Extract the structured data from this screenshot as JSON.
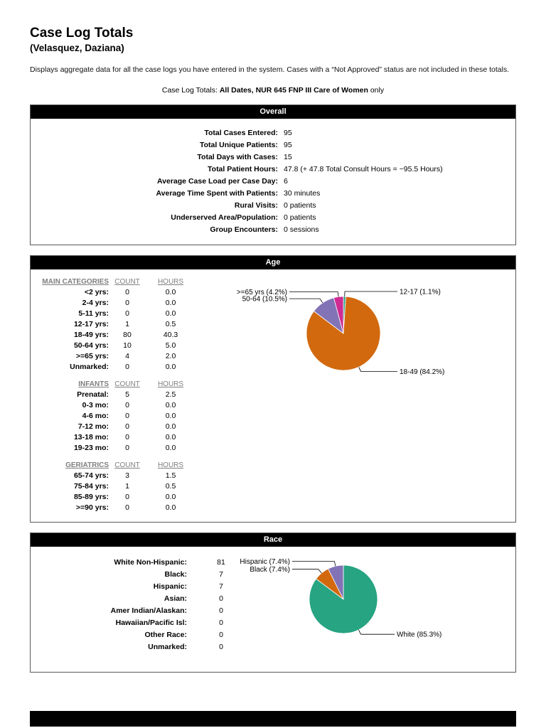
{
  "page": {
    "title": "Case Log Totals",
    "subtitle": "(Velasquez, Daziana)",
    "description": "Displays aggregate data for all the case logs you have entered in the system.  Cases with a “Not Approved” status are not included in these totals.",
    "filter_line": {
      "prefix": "Case Log Totals: ",
      "bold": "All Dates, NUR 645 FNP III Care of Women",
      "suffix": " only"
    }
  },
  "overall": {
    "header": "Overall",
    "rows": [
      {
        "label": "Total Cases Entered:",
        "value": "95"
      },
      {
        "label": "Total Unique Patients:",
        "value": "95"
      },
      {
        "label": "Total Days with Cases:",
        "value": "15"
      },
      {
        "label": "Total Patient Hours:",
        "value": "47.8 (+ 47.8 Total Consult Hours = ~95.5 Hours)"
      },
      {
        "label": "Average Case Load per Case Day:",
        "value": "6"
      },
      {
        "label": "Average Time Spent with Patients:",
        "value": "30 minutes"
      },
      {
        "label": "Rural Visits:",
        "value": "0 patients"
      },
      {
        "label": "Underserved Area/Population:",
        "value": "0 patients"
      },
      {
        "label": "Group Encounters:",
        "value": "0 sessions"
      }
    ]
  },
  "age": {
    "header": "Age",
    "col_count": "COUNT",
    "col_hours": "HOURS",
    "main": {
      "name": "MAIN CATEGORIES",
      "rows": [
        {
          "label": "<2 yrs:",
          "count": "0",
          "hours": "0.0"
        },
        {
          "label": "2-4 yrs:",
          "count": "0",
          "hours": "0.0"
        },
        {
          "label": "5-11 yrs:",
          "count": "0",
          "hours": "0.0"
        },
        {
          "label": "12-17 yrs:",
          "count": "1",
          "hours": "0.5"
        },
        {
          "label": "18-49 yrs:",
          "count": "80",
          "hours": "40.3"
        },
        {
          "label": "50-64 yrs:",
          "count": "10",
          "hours": "5.0"
        },
        {
          "label": ">=65 yrs:",
          "count": "4",
          "hours": "2.0"
        },
        {
          "label": "Unmarked:",
          "count": "0",
          "hours": "0.0"
        }
      ]
    },
    "infants": {
      "name": "INFANTS",
      "rows": [
        {
          "label": "Prenatal:",
          "count": "5",
          "hours": "2.5"
        },
        {
          "label": "0-3 mo:",
          "count": "0",
          "hours": "0.0"
        },
        {
          "label": "4-6 mo:",
          "count": "0",
          "hours": "0.0"
        },
        {
          "label": "7-12 mo:",
          "count": "0",
          "hours": "0.0"
        },
        {
          "label": "13-18 mo:",
          "count": "0",
          "hours": "0.0"
        },
        {
          "label": "19-23 mo:",
          "count": "0",
          "hours": "0.0"
        }
      ]
    },
    "geriatrics": {
      "name": "GERIATRICS",
      "rows": [
        {
          "label": "65-74 yrs:",
          "count": "3",
          "hours": "1.5"
        },
        {
          "label": "75-84 yrs:",
          "count": "1",
          "hours": "0.5"
        },
        {
          "label": "85-89 yrs:",
          "count": "0",
          "hours": "0.0"
        },
        {
          "label": ">=90 yrs:",
          "count": "0",
          "hours": "0.0"
        }
      ]
    }
  },
  "race": {
    "header": "Race",
    "rows": [
      {
        "label": "White Non-Hispanic:",
        "value": "81"
      },
      {
        "label": "Black:",
        "value": "7"
      },
      {
        "label": "Hispanic:",
        "value": "7"
      },
      {
        "label": "Asian:",
        "value": "0"
      },
      {
        "label": "Amer Indian/Alaskan:",
        "value": "0"
      },
      {
        "label": "Hawaiian/Pacific Isl:",
        "value": "0"
      },
      {
        "label": "Other Race:",
        "value": "0"
      },
      {
        "label": "Unmarked:",
        "value": "0"
      }
    ]
  },
  "chart_data": [
    {
      "type": "pie",
      "title": "Age",
      "total": 95,
      "slices": [
        {
          "label": "12-17",
          "value": 1,
          "pct": "1.1%",
          "color": "#27a482"
        },
        {
          "label": "18-49",
          "value": 80,
          "pct": "84.2%",
          "color": "#d2690e"
        },
        {
          "label": "50-64",
          "value": 10,
          "pct": "10.5%",
          "color": "#8273b6"
        },
        {
          "label": ">=65 yrs",
          "value": 4,
          "pct": "4.2%",
          "color": "#cf2b94"
        }
      ],
      "legend_position": "callout-labels",
      "grid": false
    },
    {
      "type": "pie",
      "title": "Race",
      "total": 95,
      "slices": [
        {
          "label": "White",
          "value": 81,
          "pct": "85.3%",
          "color": "#27a482"
        },
        {
          "label": "Black",
          "value": 7,
          "pct": "7.4%",
          "color": "#d2690e"
        },
        {
          "label": "Hispanic",
          "value": 7,
          "pct": "7.4%",
          "color": "#8273b6"
        }
      ],
      "legend_position": "callout-labels",
      "grid": false
    }
  ]
}
